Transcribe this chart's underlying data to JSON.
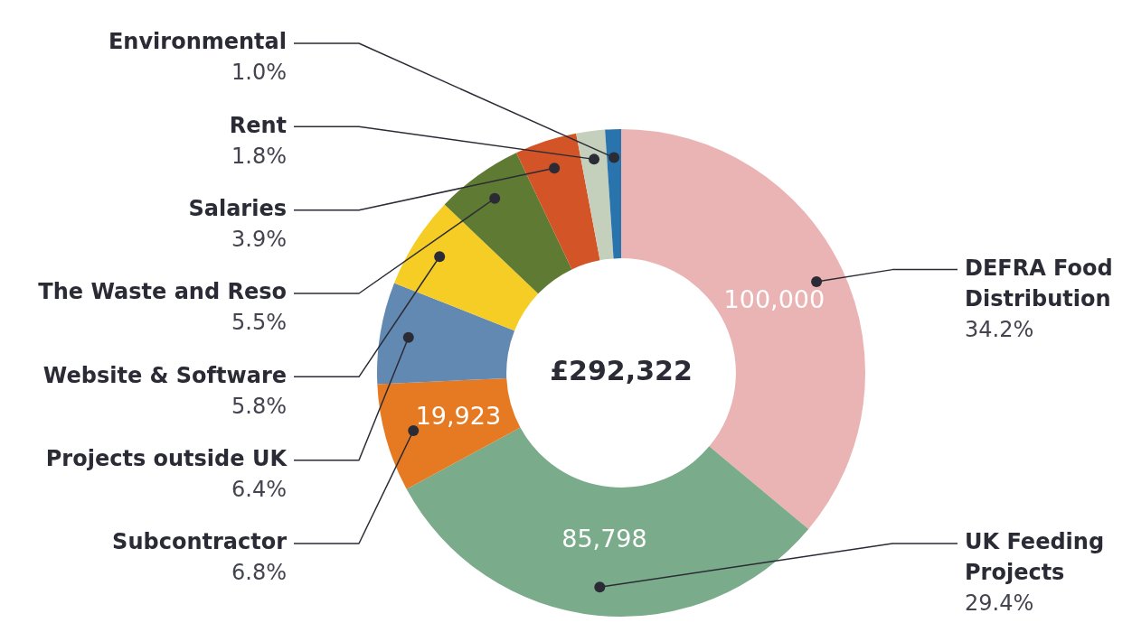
{
  "chart_data": {
    "type": "donut",
    "categories": [
      "DEFRA Food Distribution",
      "UK Feeding Projects",
      "Subcontractor",
      "Projects outside UK",
      "Website & Software",
      "The Waste and Reso",
      "Salaries",
      "Rent",
      "Environmental"
    ],
    "values": [
      34.2,
      29.4,
      6.8,
      6.4,
      5.8,
      5.5,
      3.9,
      1.8,
      1.0
    ],
    "value_labels": [
      "34.2%",
      "29.4%",
      "6.8%",
      "6.4%",
      "5.8%",
      "5.5%",
      "3.9%",
      "1.8%",
      "1.0%"
    ],
    "colors": [
      "#ebb4b4",
      "#7aab8a",
      "#e67a22",
      "#6289b2",
      "#f5cd25",
      "#5f7a32",
      "#d35426",
      "#c5d0bc",
      "#2a74ad"
    ],
    "annotations": [
      "£292,322",
      {
        "text": "100,000",
        "x": "DEFRA Food Distribution"
      },
      {
        "text": "85,798",
        "x": "UK Feeding Projects"
      },
      {
        "text": "19,923",
        "x": "Subcontractor"
      }
    ],
    "legend": false
  }
}
